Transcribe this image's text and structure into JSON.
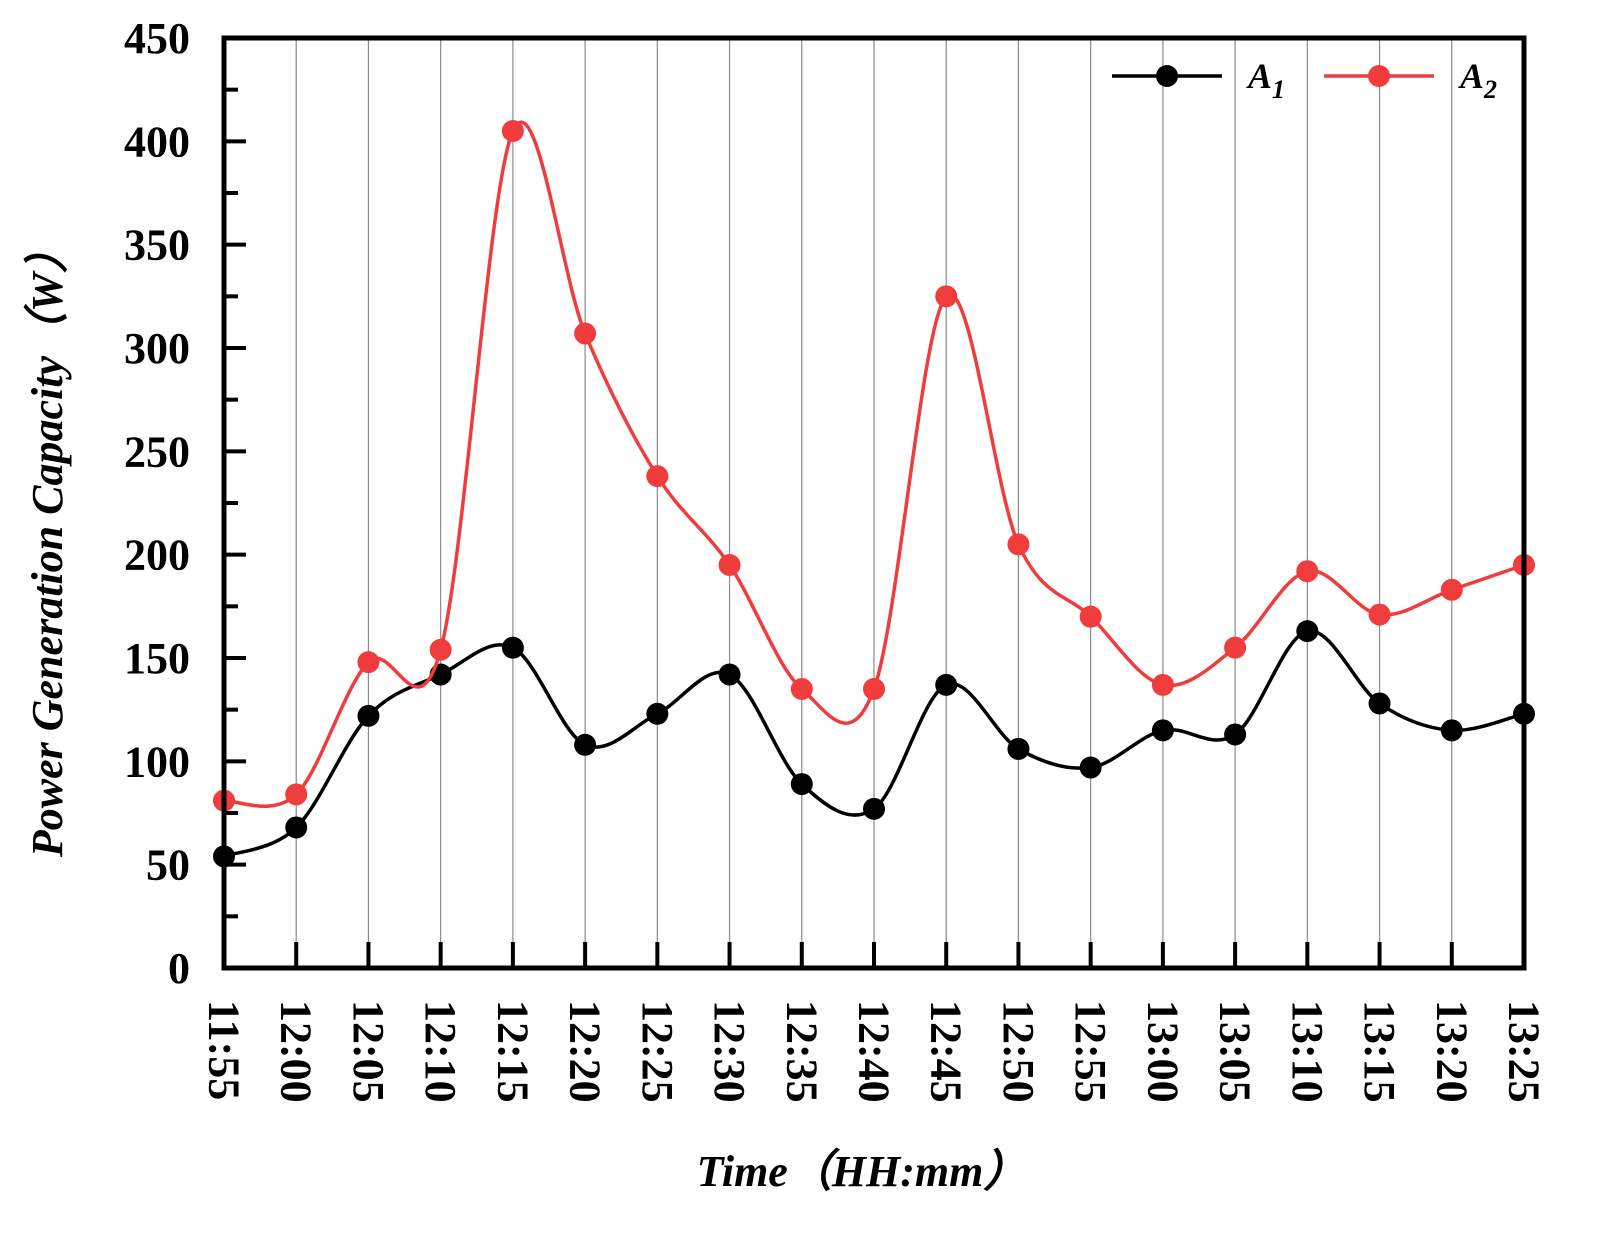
{
  "chart_data": {
    "type": "line",
    "xlabel": "Time（HH:mm）",
    "ylabel": "Power Generation Capacity（W）",
    "ylim": [
      0,
      450
    ],
    "yticks": [
      "0",
      "50",
      "100",
      "150",
      "200",
      "250",
      "300",
      "350",
      "400",
      "450"
    ],
    "categories": [
      "11:55",
      "12:00",
      "12:05",
      "12:10",
      "12:15",
      "12:20",
      "12:25",
      "12:30",
      "12:35",
      "12:40",
      "12:45",
      "12:50",
      "12:55",
      "13:00",
      "13:05",
      "13:10",
      "13:15",
      "13:20",
      "13:25"
    ],
    "grid": "vertical",
    "legend_position": "top-right",
    "series": [
      {
        "name": "A",
        "subscript": "1",
        "color": "#000000",
        "values": [
          54,
          68,
          122,
          142,
          155,
          108,
          123,
          142,
          89,
          77,
          137,
          106,
          97,
          115,
          113,
          163,
          128,
          115,
          123
        ]
      },
      {
        "name": "A",
        "subscript": "2",
        "color": "#f03c3c",
        "values": [
          81,
          84,
          148,
          154,
          405,
          307,
          238,
          195,
          135,
          135,
          325,
          205,
          170,
          137,
          155,
          192,
          171,
          183,
          195
        ]
      }
    ]
  }
}
